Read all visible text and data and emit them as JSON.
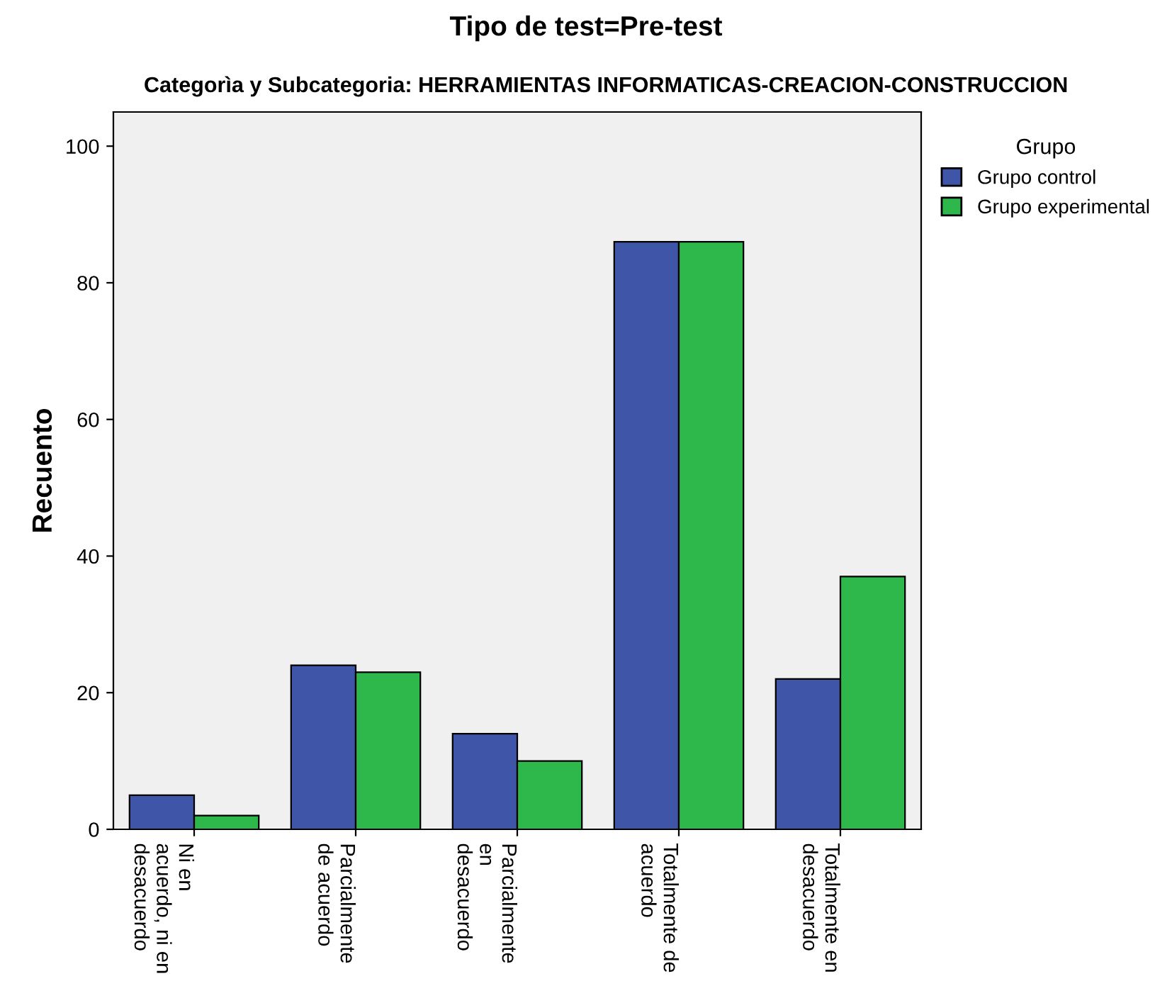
{
  "chart_data": {
    "type": "bar",
    "title": "Tipo de test=Pre-test",
    "subtitle": "Categorìa y Subcategoria: HERRAMIENTAS INFORMATICAS-CREACION-CONSTRUCCION",
    "ylabel": "Recuento",
    "legend_title": "Grupo",
    "categories": [
      "Ni en\nacuerdo, ni en\ndesacuerdo",
      "Parcialmente\nde acuerdo",
      "Parcialmente\nen\ndesacuerdo",
      "Totalmente de\nacuerdo",
      "Totalmente en\ndesacuerdo"
    ],
    "series": [
      {
        "name": "Grupo control",
        "color": "#3f55a8",
        "values": [
          5,
          24,
          14,
          86,
          22
        ]
      },
      {
        "name": "Grupo experimental",
        "color": "#2eb84b",
        "values": [
          2,
          23,
          10,
          86,
          37
        ]
      }
    ],
    "ylim": [
      0,
      105
    ],
    "yticks": [
      0,
      20,
      40,
      60,
      80,
      100
    ],
    "grid": false,
    "legend": "right"
  }
}
